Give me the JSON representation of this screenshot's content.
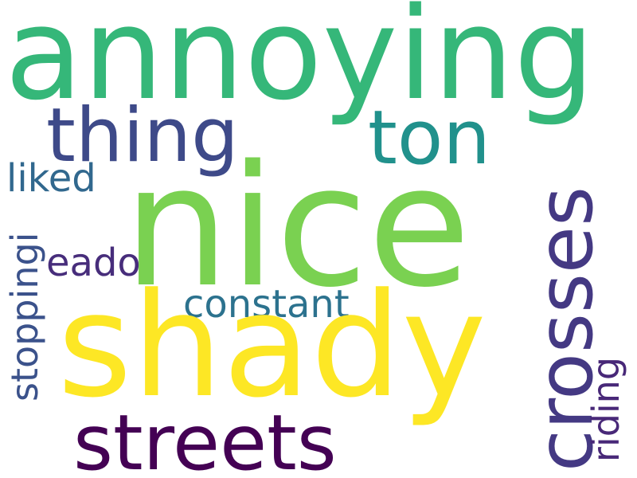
{
  "wordcloud": {
    "words": [
      {
        "text": "annoying",
        "color": "#35b779"
      },
      {
        "text": "nice",
        "color": "#7ad151"
      },
      {
        "text": "shady",
        "color": "#fde725"
      },
      {
        "text": "thing",
        "color": "#3e4a89"
      },
      {
        "text": "ton",
        "color": "#21918c"
      },
      {
        "text": "crosses",
        "color": "#443983"
      },
      {
        "text": "streets",
        "color": "#440154"
      },
      {
        "text": "liked",
        "color": "#31688e"
      },
      {
        "text": "eado",
        "color": "#472d7b"
      },
      {
        "text": "constant",
        "color": "#2c728e"
      },
      {
        "text": "stoppingi",
        "color": "#3b528b"
      },
      {
        "text": "riding",
        "color": "#482878"
      }
    ]
  }
}
